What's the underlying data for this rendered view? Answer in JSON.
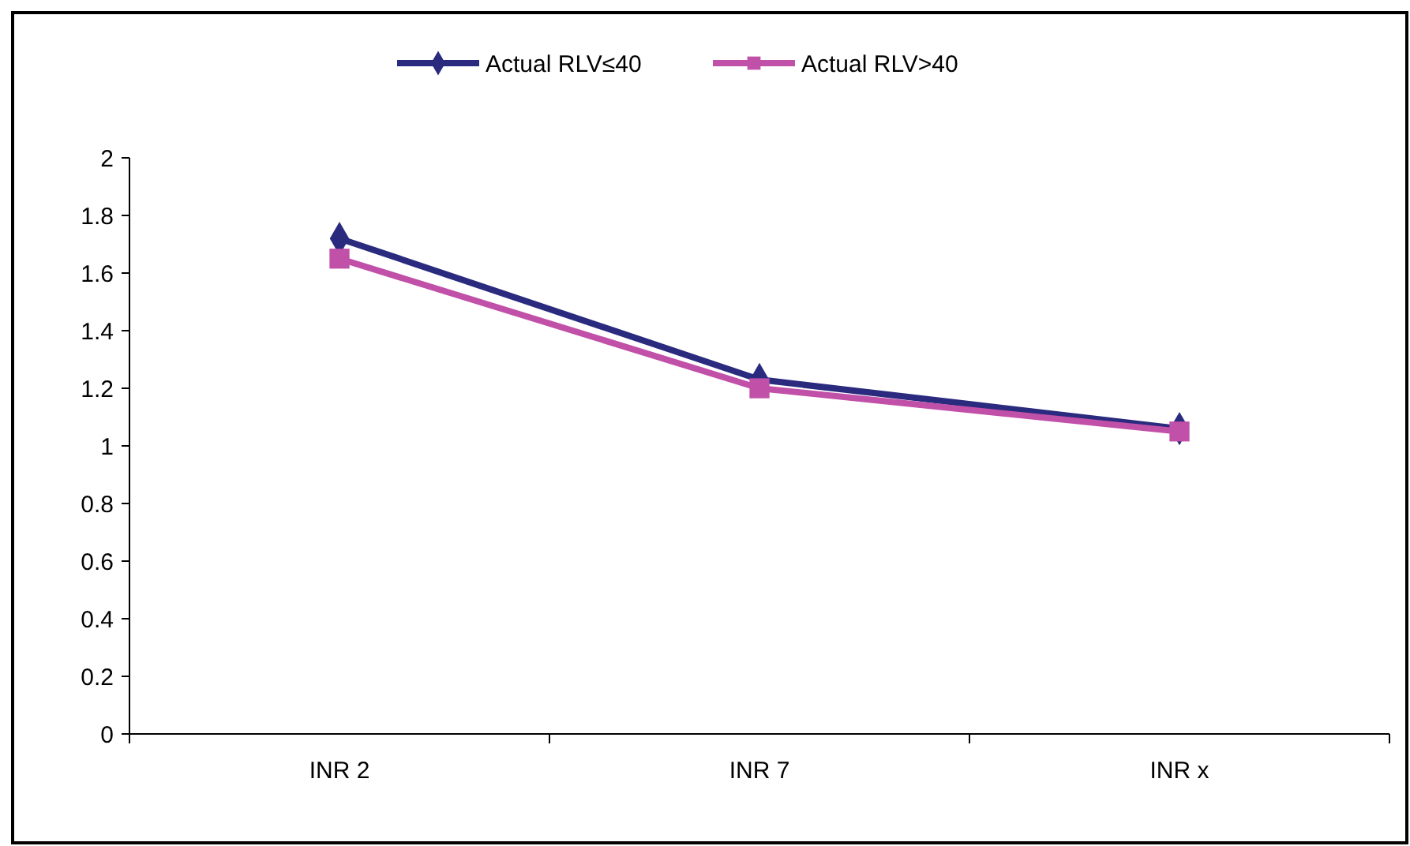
{
  "chart_data": {
    "type": "line",
    "categories": [
      "INR 2",
      "INR 7",
      "INR x"
    ],
    "series": [
      {
        "name": "Actual RLV≤40",
        "color": "#2a2a7e",
        "values": [
          1.72,
          1.23,
          1.06
        ],
        "marker": "diamond"
      },
      {
        "name": "Actual RLV>40",
        "color": "#c050a8",
        "values": [
          1.65,
          1.2,
          1.05
        ],
        "marker": "square"
      }
    ],
    "ylim": [
      0,
      2
    ],
    "yticks": [
      0,
      0.2,
      0.4,
      0.6,
      0.8,
      1,
      1.2,
      1.4,
      1.6,
      1.8,
      2
    ],
    "grid": false,
    "legend": "top"
  }
}
